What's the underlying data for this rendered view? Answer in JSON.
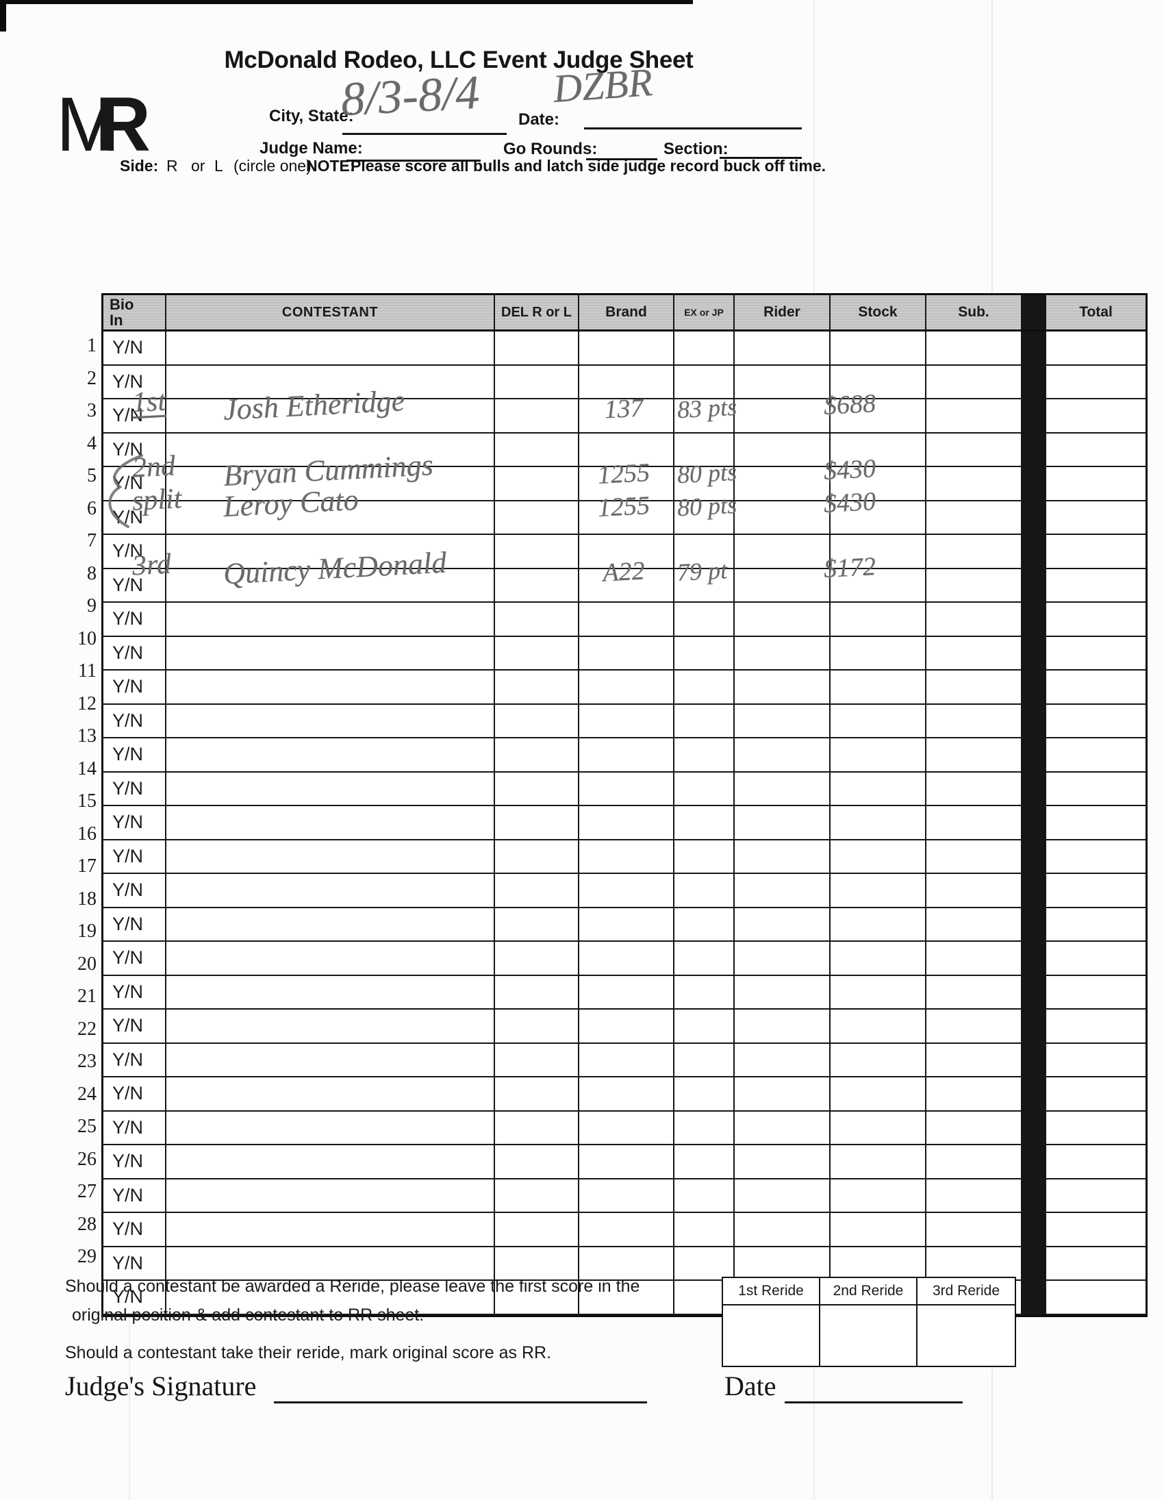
{
  "title": "McDonald Rodeo, LLC Event Judge Sheet",
  "logo": {
    "m": "M",
    "r": "R"
  },
  "fields": {
    "city_state": {
      "label": "City, State:",
      "value": "8/3-8/4"
    },
    "date": {
      "label": "Date:",
      "value": "DZBR"
    },
    "judge_name": {
      "label": "Judge Name:",
      "value": ""
    },
    "go_rounds": {
      "label": "Go Rounds:",
      "value": ""
    },
    "section": {
      "label": "Section:",
      "value": ""
    },
    "side": {
      "label": "Side:",
      "r": "R",
      "or": "or",
      "l": "L",
      "circle": "(circle one)",
      "note_label": "NOTE:",
      "note": "Please score all bulls and latch side judge record buck off time."
    }
  },
  "table": {
    "columns": [
      {
        "id": "bio",
        "label": "Bio\nIn"
      },
      {
        "id": "contestant",
        "label": "CONTESTANT"
      },
      {
        "id": "del",
        "label": "DEL R or L"
      },
      {
        "id": "brand",
        "label": "Brand"
      },
      {
        "id": "exjp",
        "label": "EX or JP"
      },
      {
        "id": "rider",
        "label": "Rider"
      },
      {
        "id": "stock",
        "label": "Stock"
      },
      {
        "id": "sub",
        "label": "Sub."
      },
      {
        "id": "sep",
        "label": ""
      },
      {
        "id": "total",
        "label": "Total"
      }
    ],
    "row_count": 29,
    "bio_value": "Y/N",
    "handwritten_entries": [
      {
        "row": 3,
        "place": "1st",
        "contestant": "Josh Etheridge",
        "brand": "137",
        "rider": "83 pts",
        "stock": "$688",
        "place_underline": true
      },
      {
        "row": 5,
        "place": "2nd",
        "contestant": "Bryan Cummings",
        "brand": "1255",
        "rider": "80 pts",
        "stock": "$430",
        "brace": true
      },
      {
        "row": 6,
        "place": "split",
        "contestant": "Leroy Cato",
        "brand": "1255",
        "rider": "80 pts",
        "stock": "$430"
      },
      {
        "row": 8,
        "place": "3rd",
        "contestant": "Quincy McDonald",
        "brand": "A22",
        "rider": "79 pt",
        "stock": "$172"
      }
    ]
  },
  "footer": {
    "note1_line1": "Should a contestant be awarded a Reride, please leave the first score in the",
    "note1_line2": "original position & add contestant to RR sheet.",
    "note2": "Should a contestant take their reride, mark original score as RR.",
    "signature_label": "Judge's Signature",
    "date_label": "Date",
    "reride_headers": [
      "1st Reride",
      "2nd Reride",
      "3rd Reride"
    ]
  },
  "colors": {
    "pencil": "#6a6a6a",
    "header_gray": "#c6c6c6",
    "ink": "#141414"
  }
}
